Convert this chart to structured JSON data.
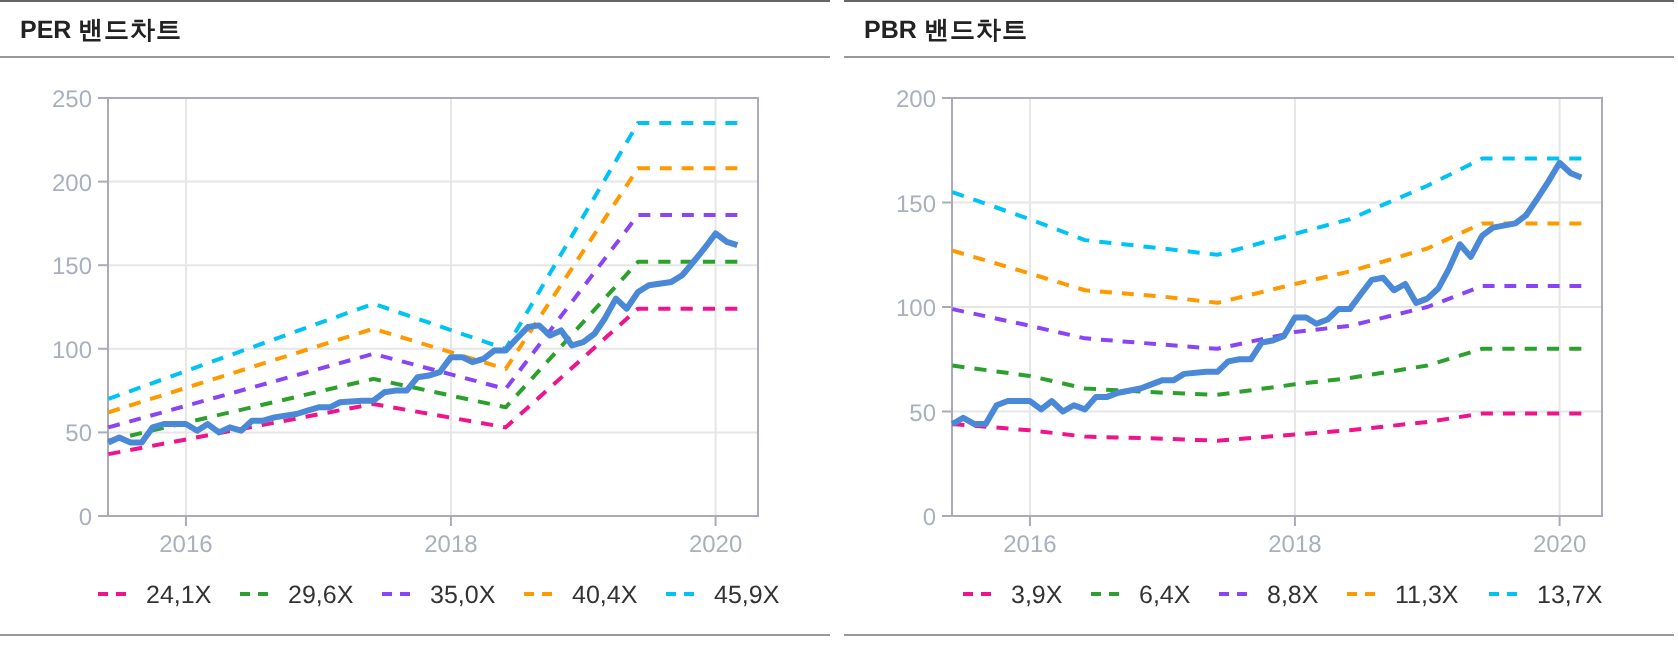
{
  "chart_data": [
    {
      "type": "line",
      "title": "PER 밴드차트",
      "xlim": [
        "2015-05-31",
        "2020-04-27"
      ],
      "xticks": [
        "2016",
        "2018",
        "2020"
      ],
      "ylim": [
        0,
        250
      ],
      "yticks": [
        0,
        50,
        100,
        150,
        200,
        250
      ],
      "grid": true,
      "legend": "bottom",
      "marker": "none",
      "series": [
        {
          "name": "24,1X",
          "color": "#f0148c",
          "line_style": "dashed",
          "x": [
            "2015-06",
            "2017-06",
            "2018-06",
            "2019-06",
            "2020-03"
          ],
          "values": [
            37,
            67,
            53,
            124,
            124
          ]
        },
        {
          "name": "29,6X",
          "color": "#2ca02c",
          "line_style": "dashed",
          "x": [
            "2015-06",
            "2017-06",
            "2018-06",
            "2019-06",
            "2020-03"
          ],
          "values": [
            45,
            82,
            65,
            152,
            152
          ]
        },
        {
          "name": "35,0X",
          "color": "#8a44f5",
          "line_style": "dashed",
          "x": [
            "2015-06",
            "2017-06",
            "2018-06",
            "2019-06",
            "2020-03"
          ],
          "values": [
            53,
            97,
            76,
            180,
            180
          ]
        },
        {
          "name": "40,4X",
          "color": "#ff9900",
          "line_style": "dashed",
          "x": [
            "2015-06",
            "2017-06",
            "2018-06",
            "2019-06",
            "2020-03"
          ],
          "values": [
            62,
            112,
            88,
            208,
            208
          ]
        },
        {
          "name": "45,9X",
          "color": "#00c3f5",
          "line_style": "dashed",
          "x": [
            "2015-06",
            "2017-06",
            "2018-06",
            "2019-06",
            "2020-03"
          ],
          "values": [
            70,
            127,
            100,
            235,
            235
          ]
        },
        {
          "color": "#4a88d8",
          "line_style": "solid",
          "x": [
            "2015-06",
            "2015-07",
            "2015-08",
            "2015-09",
            "2015-10",
            "2015-11",
            "2015-12",
            "2016-01",
            "2016-02",
            "2016-03",
            "2016-04",
            "2016-05",
            "2016-06",
            "2016-07",
            "2016-08",
            "2016-09",
            "2016-11",
            "2016-12",
            "2017-01",
            "2017-02",
            "2017-03",
            "2017-05",
            "2017-06",
            "2017-07",
            "2017-08",
            "2017-09",
            "2017-10",
            "2017-11",
            "2017-12",
            "2018-01",
            "2018-02",
            "2018-03",
            "2018-04",
            "2018-05",
            "2018-06",
            "2018-07",
            "2018-08",
            "2018-09",
            "2018-10",
            "2018-11",
            "2018-12",
            "2019-01",
            "2019-02",
            "2019-03",
            "2019-04",
            "2019-05",
            "2019-06",
            "2019-07",
            "2019-09",
            "2019-10",
            "2019-11",
            "2019-12",
            "2020-01",
            "2020-02",
            "2020-03"
          ],
          "values": [
            44,
            47,
            44,
            44,
            53,
            55,
            55,
            55,
            51,
            55,
            50,
            53,
            51,
            57,
            57,
            59,
            61,
            63,
            65,
            65,
            68,
            69,
            69,
            74,
            75,
            75,
            83,
            84,
            86,
            95,
            95,
            92,
            94,
            99,
            99,
            106,
            113,
            114,
            108,
            111,
            102,
            104,
            109,
            118,
            130,
            124,
            134,
            138,
            140,
            144,
            152,
            160,
            169,
            164,
            162
          ]
        }
      ]
    },
    {
      "type": "line",
      "title": "PBR 밴드차트",
      "xlim": [
        "2015-05-31",
        "2020-04-27"
      ],
      "xticks": [
        "2016",
        "2018",
        "2020"
      ],
      "ylim": [
        0,
        200
      ],
      "yticks": [
        0,
        50,
        100,
        150,
        200
      ],
      "grid": true,
      "legend": "bottom",
      "marker": "none",
      "series": [
        {
          "name": "3,9X",
          "color": "#f0148c",
          "line_style": "dashed",
          "x": [
            "2015-06",
            "2016-01",
            "2016-06",
            "2017-01",
            "2017-06",
            "2018-01",
            "2018-06",
            "2019-01",
            "2019-06",
            "2020-03"
          ],
          "values": [
            44,
            41,
            38,
            37,
            36,
            39,
            41,
            45,
            49,
            49
          ]
        },
        {
          "name": "6,4X",
          "color": "#2ca02c",
          "line_style": "dashed",
          "x": [
            "2015-06",
            "2016-01",
            "2016-06",
            "2017-01",
            "2017-06",
            "2018-01",
            "2018-06",
            "2019-01",
            "2019-06",
            "2020-03"
          ],
          "values": [
            72,
            67,
            61,
            59,
            58,
            63,
            66,
            72,
            80,
            80
          ]
        },
        {
          "name": "8,8X",
          "color": "#8a44f5",
          "line_style": "dashed",
          "x": [
            "2015-06",
            "2016-01",
            "2016-06",
            "2017-01",
            "2017-06",
            "2018-01",
            "2018-06",
            "2019-01",
            "2019-06",
            "2020-03"
          ],
          "values": [
            99,
            91,
            85,
            82,
            80,
            88,
            91,
            100,
            110,
            110
          ]
        },
        {
          "name": "11,3X",
          "color": "#ff9900",
          "line_style": "dashed",
          "x": [
            "2015-06",
            "2016-01",
            "2016-06",
            "2017-01",
            "2017-06",
            "2018-01",
            "2018-06",
            "2019-01",
            "2019-06",
            "2020-03"
          ],
          "values": [
            127,
            116,
            108,
            105,
            102,
            111,
            117,
            128,
            140,
            140
          ]
        },
        {
          "name": "13,7X",
          "color": "#00c3f5",
          "line_style": "dashed",
          "x": [
            "2015-06",
            "2016-01",
            "2016-06",
            "2017-01",
            "2017-06",
            "2018-01",
            "2018-06",
            "2019-01",
            "2019-06",
            "2020-03"
          ],
          "values": [
            155,
            142,
            132,
            128,
            125,
            135,
            142,
            158,
            171,
            171
          ]
        },
        {
          "color": "#4a88d8",
          "line_style": "solid",
          "x": [
            "2015-06",
            "2015-07",
            "2015-08",
            "2015-09",
            "2015-10",
            "2015-11",
            "2015-12",
            "2016-01",
            "2016-02",
            "2016-03",
            "2016-04",
            "2016-05",
            "2016-06",
            "2016-07",
            "2016-08",
            "2016-09",
            "2016-11",
            "2016-12",
            "2017-01",
            "2017-02",
            "2017-03",
            "2017-05",
            "2017-06",
            "2017-07",
            "2017-08",
            "2017-09",
            "2017-10",
            "2017-11",
            "2017-12",
            "2018-01",
            "2018-02",
            "2018-03",
            "2018-04",
            "2018-05",
            "2018-06",
            "2018-07",
            "2018-08",
            "2018-09",
            "2018-10",
            "2018-11",
            "2018-12",
            "2019-01",
            "2019-02",
            "2019-03",
            "2019-04",
            "2019-05",
            "2019-06",
            "2019-07",
            "2019-09",
            "2019-10",
            "2019-11",
            "2019-12",
            "2020-01",
            "2020-02",
            "2020-03"
          ],
          "values": [
            44,
            47,
            44,
            44,
            53,
            55,
            55,
            55,
            51,
            55,
            50,
            53,
            51,
            57,
            57,
            59,
            61,
            63,
            65,
            65,
            68,
            69,
            69,
            74,
            75,
            75,
            83,
            84,
            86,
            95,
            95,
            92,
            94,
            99,
            99,
            106,
            113,
            114,
            108,
            111,
            102,
            104,
            109,
            118,
            130,
            124,
            134,
            138,
            140,
            144,
            152,
            160,
            169,
            164,
            162
          ]
        }
      ]
    }
  ]
}
